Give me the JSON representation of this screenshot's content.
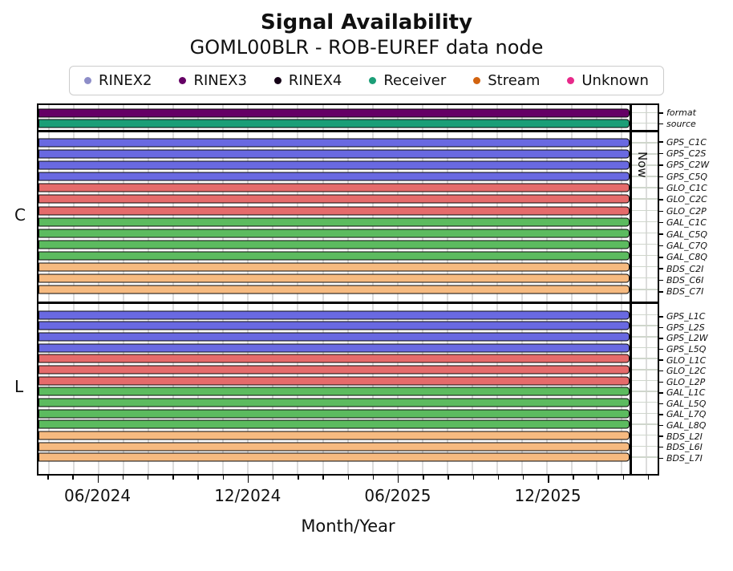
{
  "title": "Signal Availability",
  "subtitle": "GOML00BLR - ROB-EUREF data node",
  "legend": [
    {
      "label": "RINEX2",
      "color": "#8d8dc8"
    },
    {
      "label": "RINEX3",
      "color": "#650065"
    },
    {
      "label": "RINEX4",
      "color": "#140016"
    },
    {
      "label": "Receiver",
      "color": "#1b9e77"
    },
    {
      "label": "Stream",
      "color": "#d2630f"
    },
    {
      "label": "Unknown",
      "color": "#e7298a"
    }
  ],
  "now_marker": {
    "label": "Now"
  },
  "chart_data": {
    "type": "bar",
    "variant": "horizontal availability timeline (gantt-style, full-span bars from plot start to Now marker)",
    "title": "Signal Availability",
    "subtitle": "GOML00BLR - ROB-EUREF data node",
    "xlabel": "Month/Year",
    "x_ticks": [
      "06/2024",
      "12/2024",
      "06/2025",
      "12/2025"
    ],
    "x_minor_ticks": "monthly",
    "x_range": [
      "03/2024",
      "04/2026"
    ],
    "grid": true,
    "legend_position": "top",
    "legend_entries": [
      "RINEX2",
      "RINEX3",
      "RINEX4",
      "Receiver",
      "Stream",
      "Unknown"
    ],
    "constellation_colors": {
      "GPS": "#6969e1",
      "GLO": "#e56b6b",
      "GAL": "#5cbb5f",
      "BDS": "#f6ba80"
    },
    "groups": [
      {
        "name": "",
        "rows": [
          {
            "label": "format",
            "series": "RINEX3",
            "color": "#650065",
            "start": "03/2024",
            "end": "Now"
          },
          {
            "label": "source",
            "series": "Receiver",
            "color": "#1b9e77",
            "start": "03/2024",
            "end": "Now"
          }
        ]
      },
      {
        "name": "C",
        "rows": [
          {
            "label": "GPS_C1C",
            "constellation": "GPS",
            "color": "#6969e1",
            "start": "03/2024",
            "end": "Now"
          },
          {
            "label": "GPS_C2S",
            "constellation": "GPS",
            "color": "#6969e1",
            "start": "03/2024",
            "end": "Now"
          },
          {
            "label": "GPS_C2W",
            "constellation": "GPS",
            "color": "#6969e1",
            "start": "03/2024",
            "end": "Now"
          },
          {
            "label": "GPS_C5Q",
            "constellation": "GPS",
            "color": "#6969e1",
            "start": "03/2024",
            "end": "Now"
          },
          {
            "label": "GLO_C1C",
            "constellation": "GLO",
            "color": "#e56b6b",
            "start": "03/2024",
            "end": "Now"
          },
          {
            "label": "GLO_C2C",
            "constellation": "GLO",
            "color": "#e56b6b",
            "start": "03/2024",
            "end": "Now"
          },
          {
            "label": "GLO_C2P",
            "constellation": "GLO",
            "color": "#e56b6b",
            "start": "03/2024",
            "end": "Now"
          },
          {
            "label": "GAL_C1C",
            "constellation": "GAL",
            "color": "#5cbb5f",
            "start": "03/2024",
            "end": "Now"
          },
          {
            "label": "GAL_C5Q",
            "constellation": "GAL",
            "color": "#5cbb5f",
            "start": "03/2024",
            "end": "Now"
          },
          {
            "label": "GAL_C7Q",
            "constellation": "GAL",
            "color": "#5cbb5f",
            "start": "03/2024",
            "end": "Now"
          },
          {
            "label": "GAL_C8Q",
            "constellation": "GAL",
            "color": "#5cbb5f",
            "start": "03/2024",
            "end": "Now"
          },
          {
            "label": "BDS_C2I",
            "constellation": "BDS",
            "color": "#f6ba80",
            "start": "03/2024",
            "end": "Now"
          },
          {
            "label": "BDS_C6I",
            "constellation": "BDS",
            "color": "#f6ba80",
            "start": "03/2024",
            "end": "Now"
          },
          {
            "label": "BDS_C7I",
            "constellation": "BDS",
            "color": "#f6ba80",
            "start": "03/2024",
            "end": "Now"
          }
        ]
      },
      {
        "name": "L",
        "rows": [
          {
            "label": "GPS_L1C",
            "constellation": "GPS",
            "color": "#6969e1",
            "start": "03/2024",
            "end": "Now"
          },
          {
            "label": "GPS_L2S",
            "constellation": "GPS",
            "color": "#6969e1",
            "start": "03/2024",
            "end": "Now"
          },
          {
            "label": "GPS_L2W",
            "constellation": "GPS",
            "color": "#6969e1",
            "start": "03/2024",
            "end": "Now"
          },
          {
            "label": "GPS_L5Q",
            "constellation": "GPS",
            "color": "#6969e1",
            "start": "03/2024",
            "end": "Now"
          },
          {
            "label": "GLO_L1C",
            "constellation": "GLO",
            "color": "#e56b6b",
            "start": "03/2024",
            "end": "Now"
          },
          {
            "label": "GLO_L2C",
            "constellation": "GLO",
            "color": "#e56b6b",
            "start": "03/2024",
            "end": "Now"
          },
          {
            "label": "GLO_L2P",
            "constellation": "GLO",
            "color": "#e56b6b",
            "start": "03/2024",
            "end": "Now"
          },
          {
            "label": "GAL_L1C",
            "constellation": "GAL",
            "color": "#5cbb5f",
            "start": "03/2024",
            "end": "Now"
          },
          {
            "label": "GAL_L5Q",
            "constellation": "GAL",
            "color": "#5cbb5f",
            "start": "03/2024",
            "end": "Now"
          },
          {
            "label": "GAL_L7Q",
            "constellation": "GAL",
            "color": "#5cbb5f",
            "start": "03/2024",
            "end": "Now"
          },
          {
            "label": "GAL_L8Q",
            "constellation": "GAL",
            "color": "#5cbb5f",
            "start": "03/2024",
            "end": "Now"
          },
          {
            "label": "BDS_L2I",
            "constellation": "BDS",
            "color": "#f6ba80",
            "start": "03/2024",
            "end": "Now"
          },
          {
            "label": "BDS_L6I",
            "constellation": "BDS",
            "color": "#f6ba80",
            "start": "03/2024",
            "end": "Now"
          },
          {
            "label": "BDS_L7I",
            "constellation": "BDS",
            "color": "#f6ba80",
            "start": "03/2024",
            "end": "Now"
          }
        ]
      }
    ]
  }
}
